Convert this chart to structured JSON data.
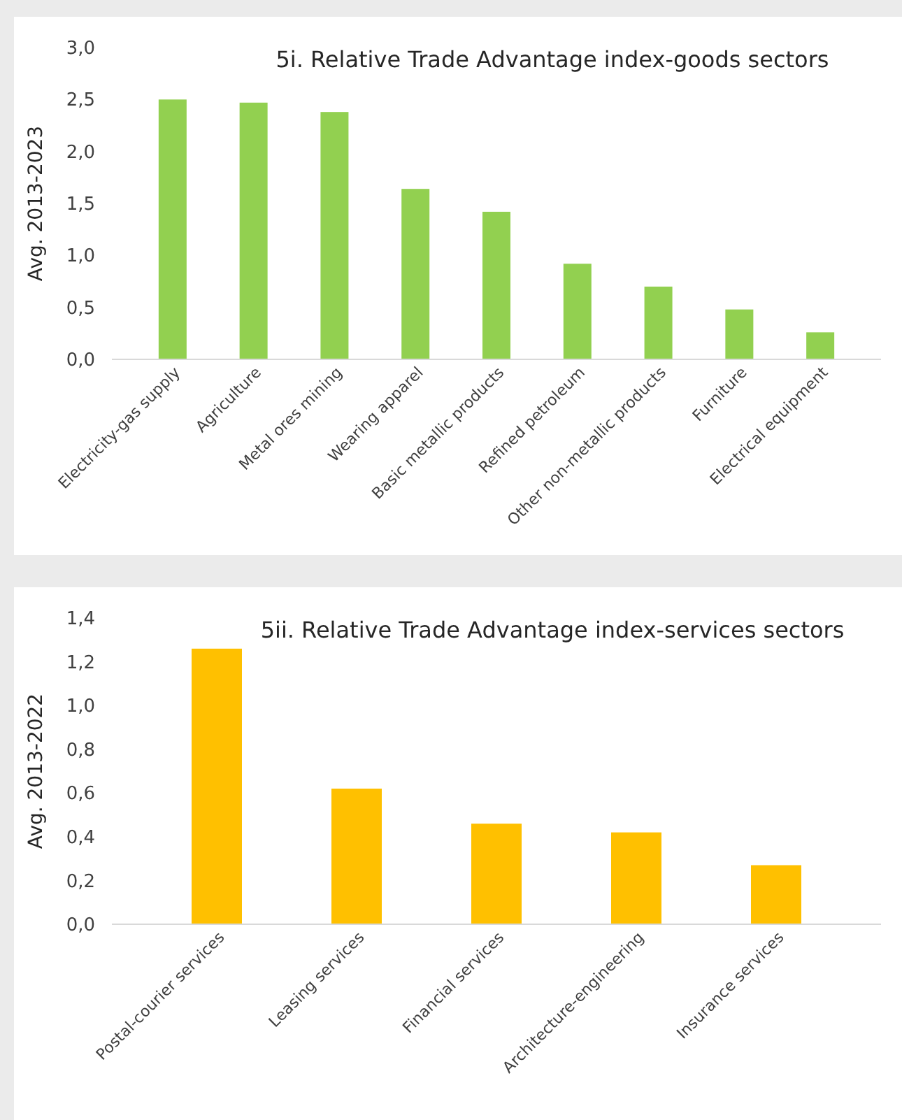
{
  "chart_data": [
    {
      "type": "bar",
      "title": "5i. Relative Trade Advantage index-goods sectors",
      "ylabel": "Avg. 2013-2023",
      "categories": [
        "Electricity-gas supply",
        "Agriculture",
        "Metal ores mining",
        "Wearing apparel",
        "Basic metallic products",
        "Refined petroleum",
        "Other non-metallic products",
        "Furniture",
        "Electrical equipment"
      ],
      "values": [
        2.5,
        2.47,
        2.38,
        1.64,
        1.42,
        0.92,
        0.7,
        0.48,
        0.26
      ],
      "color": "#92d050",
      "ylim": [
        0,
        3
      ],
      "yticks": [
        {
          "value": 0,
          "label": "0,0"
        },
        {
          "value": 0.5,
          "label": "0,5"
        },
        {
          "value": 1,
          "label": "1,0"
        },
        {
          "value": 1.5,
          "label": "1,5"
        },
        {
          "value": 2,
          "label": "2,0"
        },
        {
          "value": 2.5,
          "label": "2,5"
        },
        {
          "value": 3,
          "label": "3,0"
        }
      ],
      "grid": false
    },
    {
      "type": "bar",
      "title": "5ii. Relative Trade Advantage index-services sectors",
      "ylabel": "Avg. 2013-2022",
      "categories": [
        "Postal-courier services",
        "Leasing services",
        "Financial services",
        "Architecture-engineering",
        "Insurance services"
      ],
      "values": [
        1.26,
        0.62,
        0.46,
        0.42,
        0.27
      ],
      "color": "#ffc000",
      "ylim": [
        0,
        1.4
      ],
      "yticks": [
        {
          "value": 0,
          "label": "0,0"
        },
        {
          "value": 0.2,
          "label": "0,2"
        },
        {
          "value": 0.4,
          "label": "0,4"
        },
        {
          "value": 0.6,
          "label": "0,6"
        },
        {
          "value": 0.8,
          "label": "0,8"
        },
        {
          "value": 1,
          "label": "1,0"
        },
        {
          "value": 1.2,
          "label": "1,2"
        },
        {
          "value": 1.4,
          "label": "1,4"
        }
      ],
      "grid": false
    }
  ]
}
